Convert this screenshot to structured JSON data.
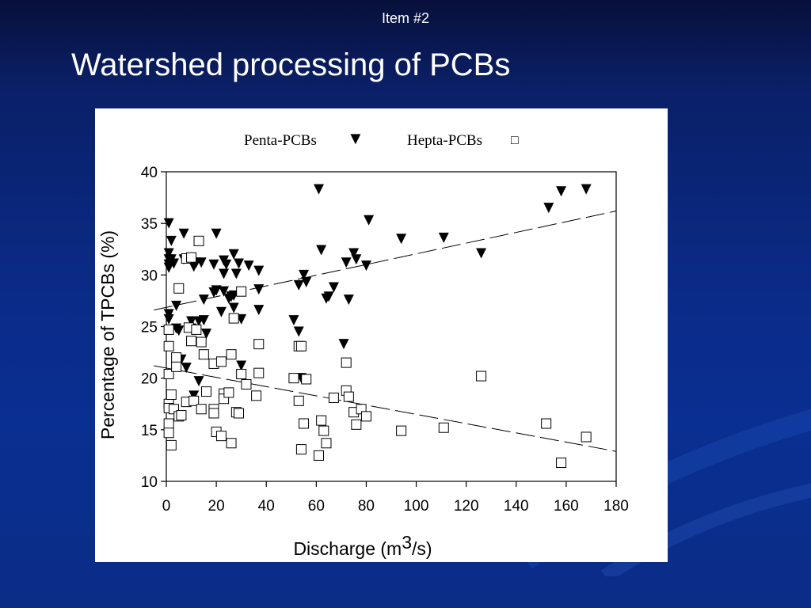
{
  "header": {
    "item_label": "Item #2",
    "title": "Watershed processing of PCBs"
  },
  "colors": {
    "background": "#0b2a86",
    "panel": "#ffffff",
    "marker": "#000000"
  },
  "chart_data": {
    "type": "scatter",
    "xlabel_main": "Discharge (m",
    "xlabel_sup": "3",
    "xlabel_tail": "/s)",
    "ylabel": "Percentage of TPCBs (%)",
    "xlim": [
      0,
      180
    ],
    "ylim": [
      10,
      40
    ],
    "x_ticks": [
      "0",
      "20",
      "40",
      "60",
      "80",
      "100",
      "120",
      "140",
      "160",
      "180"
    ],
    "y_ticks": [
      "10",
      "15",
      "20",
      "25",
      "30",
      "35",
      "40"
    ],
    "legend": [
      {
        "name": "Penta-PCBs",
        "symbol": "▼"
      },
      {
        "name": "Hepta-PCBs",
        "symbol": "□"
      }
    ],
    "legend_position": "top-center",
    "grid": false,
    "trend_lines": [
      {
        "series": "Penta-PCBs",
        "style": "dashed",
        "points": [
          [
            -5,
            26.6
          ],
          [
            180,
            36.2
          ]
        ]
      },
      {
        "series": "Hepta-PCBs",
        "style": "dashed",
        "points": [
          [
            -5,
            21.2
          ],
          [
            180,
            12.9
          ]
        ]
      }
    ],
    "series": [
      {
        "name": "Penta-PCBs",
        "marker": "triangle-down",
        "points": [
          [
            1,
            35
          ],
          [
            1,
            32.1
          ],
          [
            1,
            31.5
          ],
          [
            1,
            31
          ],
          [
            2,
            31.5
          ],
          [
            1,
            30.7
          ],
          [
            1,
            26.2
          ],
          [
            1,
            25.7
          ],
          [
            2,
            33.3
          ],
          [
            3,
            31.1
          ],
          [
            4,
            27
          ],
          [
            4,
            24.8
          ],
          [
            5,
            24.6
          ],
          [
            6,
            21.8
          ],
          [
            7,
            31.5
          ],
          [
            7,
            34
          ],
          [
            8,
            21
          ],
          [
            10,
            25.5
          ],
          [
            10,
            24.8
          ],
          [
            11,
            18.3
          ],
          [
            11,
            30.8
          ],
          [
            12,
            31.2
          ],
          [
            13,
            25.5
          ],
          [
            13,
            19.7
          ],
          [
            14,
            31.2
          ],
          [
            15,
            27.6
          ],
          [
            15,
            25.6
          ],
          [
            16,
            24.3
          ],
          [
            19,
            31
          ],
          [
            19,
            28.3
          ],
          [
            20,
            34
          ],
          [
            20,
            28.5
          ],
          [
            22,
            26.4
          ],
          [
            23,
            28.4
          ],
          [
            23,
            31.4
          ],
          [
            23,
            30.1
          ],
          [
            24,
            31
          ],
          [
            25,
            27.7
          ],
          [
            26,
            27.9
          ],
          [
            27,
            32
          ],
          [
            27,
            26.8
          ],
          [
            27,
            28
          ],
          [
            28,
            30.1
          ],
          [
            29,
            31.1
          ],
          [
            30,
            21.2
          ],
          [
            30,
            25.7
          ],
          [
            33,
            30.9
          ],
          [
            37,
            30.4
          ],
          [
            37,
            28.6
          ],
          [
            37,
            26.6
          ],
          [
            51,
            25.6
          ],
          [
            53,
            29
          ],
          [
            53,
            24.5
          ],
          [
            54,
            20
          ],
          [
            55,
            30
          ],
          [
            56,
            29.3
          ],
          [
            61,
            38.3
          ],
          [
            62,
            32.4
          ],
          [
            64,
            27.7
          ],
          [
            65,
            27.9
          ],
          [
            67,
            28.8
          ],
          [
            71,
            23.3
          ],
          [
            72,
            31.2
          ],
          [
            73,
            27.6
          ],
          [
            75,
            32.1
          ],
          [
            76,
            31.5
          ],
          [
            80,
            30.9
          ],
          [
            81,
            35.3
          ],
          [
            94,
            33.5
          ],
          [
            111,
            33.6
          ],
          [
            126,
            32.1
          ],
          [
            153,
            36.5
          ],
          [
            158,
            38.1
          ],
          [
            168,
            38.3
          ]
        ]
      },
      {
        "name": "Hepta-PCBs",
        "marker": "square-open",
        "points": [
          [
            1,
            24.7
          ],
          [
            1,
            23.1
          ],
          [
            1,
            20.4
          ],
          [
            1,
            17.5
          ],
          [
            1,
            17.1
          ],
          [
            1,
            15.6
          ],
          [
            1,
            14.7
          ],
          [
            2,
            13.5
          ],
          [
            2,
            18.4
          ],
          [
            3,
            17
          ],
          [
            4,
            22
          ],
          [
            4,
            21.1
          ],
          [
            5,
            28.7
          ],
          [
            5,
            16.3
          ],
          [
            6,
            16.4
          ],
          [
            8,
            31.6
          ],
          [
            8,
            17.7
          ],
          [
            9,
            24.9
          ],
          [
            10,
            31.7
          ],
          [
            10,
            23.6
          ],
          [
            11,
            17.8
          ],
          [
            12,
            24.7
          ],
          [
            13,
            33.3
          ],
          [
            14,
            23.5
          ],
          [
            14,
            17
          ],
          [
            15,
            22.3
          ],
          [
            16,
            18.7
          ],
          [
            19,
            21.4
          ],
          [
            19,
            17
          ],
          [
            19,
            16.6
          ],
          [
            20,
            14.8
          ],
          [
            22,
            14.4
          ],
          [
            22,
            21.6
          ],
          [
            23,
            18.5
          ],
          [
            23,
            18
          ],
          [
            25,
            18.6
          ],
          [
            26,
            22.3
          ],
          [
            26,
            13.7
          ],
          [
            27,
            25.8
          ],
          [
            28,
            16.7
          ],
          [
            29,
            16.6
          ],
          [
            30,
            28.4
          ],
          [
            30,
            20.4
          ],
          [
            32,
            19.4
          ],
          [
            36,
            18.3
          ],
          [
            37,
            23.3
          ],
          [
            37,
            20.5
          ],
          [
            51,
            20
          ],
          [
            53,
            23.1
          ],
          [
            53,
            17.8
          ],
          [
            54,
            13.1
          ],
          [
            54,
            23.1
          ],
          [
            55,
            15.6
          ],
          [
            56,
            19.9
          ],
          [
            61,
            12.5
          ],
          [
            62,
            15.9
          ],
          [
            63,
            14.9
          ],
          [
            64,
            13.7
          ],
          [
            67,
            18.1
          ],
          [
            72,
            18.8
          ],
          [
            72,
            21.5
          ],
          [
            73,
            18.2
          ],
          [
            75,
            16.7
          ],
          [
            76,
            15.5
          ],
          [
            78,
            17
          ],
          [
            80,
            16.3
          ],
          [
            94,
            14.9
          ],
          [
            111,
            15.2
          ],
          [
            126,
            20.2
          ],
          [
            152,
            15.6
          ],
          [
            158,
            11.8
          ],
          [
            168,
            14.3
          ]
        ]
      }
    ]
  }
}
